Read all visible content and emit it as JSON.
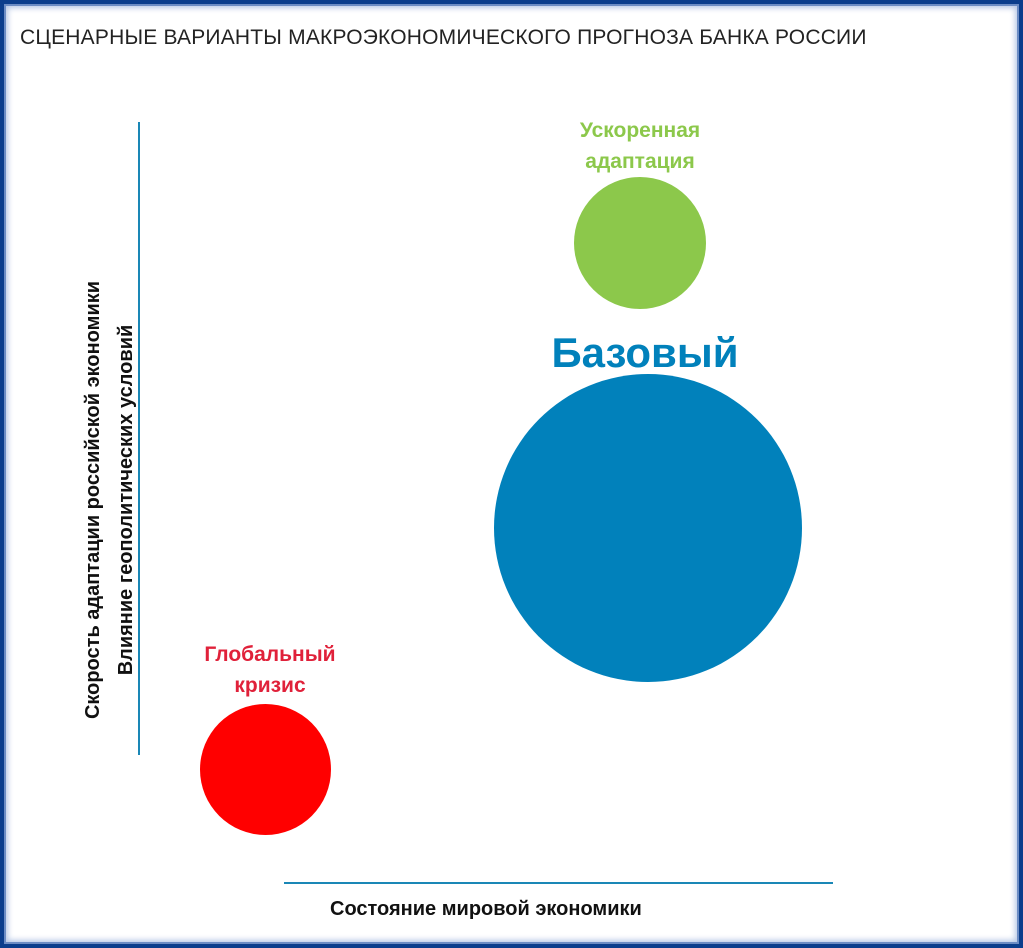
{
  "title": "СЦЕНАРНЫЕ ВАРИАНТЫ МАКРОЭКОНОМИЧЕСКОГО ПРОГНОЗА БАНКА РОССИИ",
  "x_axis": {
    "label": "Состояние мировой экономики"
  },
  "y_axis": {
    "label_line1": "Скорость адаптации российской экономики",
    "label_line2": "Влияние геополитических условий"
  },
  "scenarios": {
    "accelerated": {
      "label_line1": "Ускоренная",
      "label_line2": "адаптация",
      "color": "#8cc84b"
    },
    "base": {
      "label": "Базовый",
      "color": "#0181bb"
    },
    "crisis": {
      "label_line1": "Глобальный",
      "label_line2": "кризис",
      "color": "#ff0000",
      "label_color": "#e0213a"
    }
  }
}
